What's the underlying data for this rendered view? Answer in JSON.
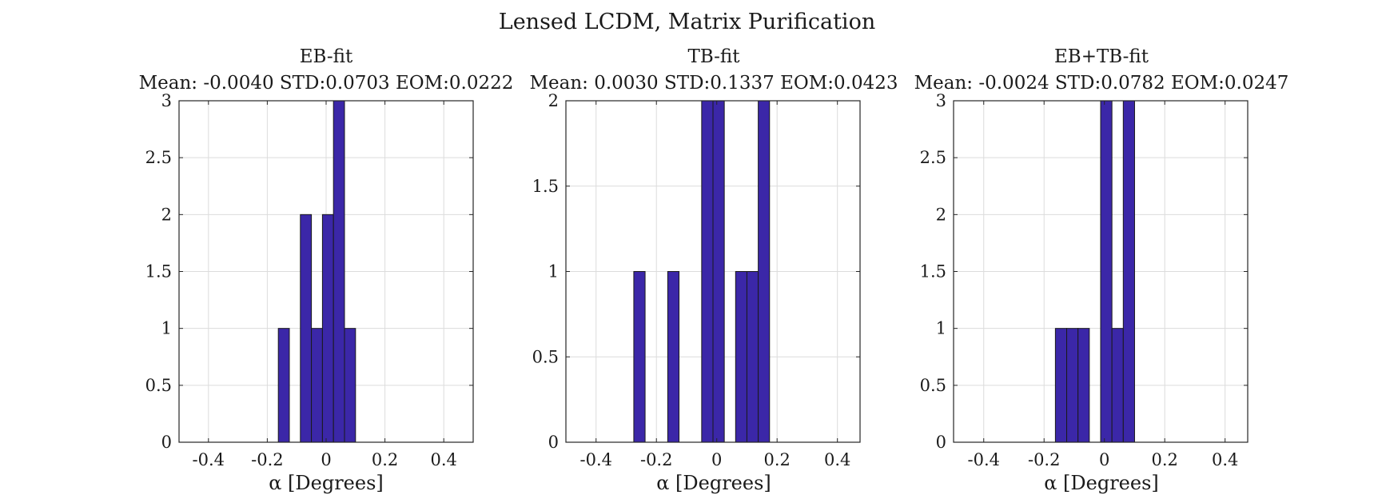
{
  "figure": {
    "title": "Lensed LCDM, Matrix Purification"
  },
  "colors": {
    "bar_fill": "#3b27a8",
    "bar_edge": "#1a1a1a",
    "grid": "#dcdcdc",
    "axis": "#262626"
  },
  "chart_data": [
    {
      "type": "bar",
      "title": "EB-fit",
      "subtitle": "Mean: -0.0040 STD:0.0703 EOM:0.0222",
      "xlabel": "α [Degrees]",
      "ylabel": "",
      "xlim": [
        -0.5,
        0.5
      ],
      "ylim": [
        0,
        3
      ],
      "xticks": [
        -0.4,
        -0.2,
        0,
        0.2,
        0.4
      ],
      "xtick_labels": [
        "-0.4",
        "-0.2",
        "0",
        "0.2",
        "0.4"
      ],
      "yticks": [
        0,
        0.5,
        1,
        1.5,
        2,
        2.5,
        3
      ],
      "ytick_labels": [
        "0",
        "0.5",
        "1",
        "1.5",
        "2",
        "2.5",
        "3"
      ],
      "bin_edges": [
        -0.5,
        -0.4625,
        -0.425,
        -0.3875,
        -0.35,
        -0.3125,
        -0.275,
        -0.2375,
        -0.2,
        -0.1625,
        -0.125,
        -0.0875,
        -0.05,
        -0.0125,
        0.025,
        0.0625,
        0.1,
        0.1375,
        0.175,
        0.2125,
        0.25,
        0.2875,
        0.325,
        0.3625,
        0.4,
        0.4375,
        0.475
      ],
      "counts": [
        0,
        0,
        0,
        0,
        0,
        0,
        0,
        0,
        0,
        1,
        0,
        2,
        1,
        2,
        3,
        1,
        0,
        0,
        0,
        0,
        0,
        0,
        0,
        0,
        0,
        0
      ],
      "grid": true
    },
    {
      "type": "bar",
      "title": "TB-fit",
      "subtitle": "Mean: 0.0030 STD:0.1337 EOM:0.0423",
      "xlabel": "α [Degrees]",
      "ylabel": "",
      "xlim": [
        -0.5,
        0.475
      ],
      "ylim": [
        0,
        2
      ],
      "xticks": [
        -0.4,
        -0.2,
        0,
        0.2,
        0.4
      ],
      "xtick_labels": [
        "-0.4",
        "-0.2",
        "0",
        "0.2",
        "0.4"
      ],
      "yticks": [
        0,
        0.5,
        1,
        1.5,
        2
      ],
      "ytick_labels": [
        "0",
        "0.5",
        "1",
        "1.5",
        "2"
      ],
      "bin_edges": [
        -0.5,
        -0.4625,
        -0.425,
        -0.3875,
        -0.35,
        -0.3125,
        -0.275,
        -0.2375,
        -0.2,
        -0.1625,
        -0.125,
        -0.0875,
        -0.05,
        -0.0125,
        0.025,
        0.0625,
        0.1,
        0.1375,
        0.175,
        0.2125,
        0.25,
        0.2875,
        0.325,
        0.3625,
        0.4,
        0.4375,
        0.475
      ],
      "counts": [
        0,
        0,
        0,
        0,
        0,
        0,
        1,
        0,
        0,
        1,
        0,
        0,
        2,
        2,
        0,
        1,
        1,
        2,
        0,
        0,
        0,
        0,
        0,
        0,
        0,
        0
      ],
      "grid": true
    },
    {
      "type": "bar",
      "title": "EB+TB-fit",
      "subtitle": "Mean: -0.0024 STD:0.0782 EOM:0.0247",
      "xlabel": "α [Degrees]",
      "ylabel": "",
      "xlim": [
        -0.5,
        0.475
      ],
      "ylim": [
        0,
        3
      ],
      "xticks": [
        -0.4,
        -0.2,
        0,
        0.2,
        0.4
      ],
      "xtick_labels": [
        "-0.4",
        "-0.2",
        "0",
        "0.2",
        "0.4"
      ],
      "yticks": [
        0,
        0.5,
        1,
        1.5,
        2,
        2.5,
        3
      ],
      "ytick_labels": [
        "0",
        "0.5",
        "1",
        "1.5",
        "2",
        "2.5",
        "3"
      ],
      "bin_edges": [
        -0.5,
        -0.4625,
        -0.425,
        -0.3875,
        -0.35,
        -0.3125,
        -0.275,
        -0.2375,
        -0.2,
        -0.1625,
        -0.125,
        -0.0875,
        -0.05,
        -0.0125,
        0.025,
        0.0625,
        0.1,
        0.1375,
        0.175,
        0.2125,
        0.25,
        0.2875,
        0.325,
        0.3625,
        0.4,
        0.4375,
        0.475
      ],
      "counts": [
        0,
        0,
        0,
        0,
        0,
        0,
        0,
        0,
        0,
        1,
        1,
        1,
        0,
        3,
        1,
        3,
        0,
        0,
        0,
        0,
        0,
        0,
        0,
        0,
        0,
        0
      ],
      "grid": true
    }
  ]
}
